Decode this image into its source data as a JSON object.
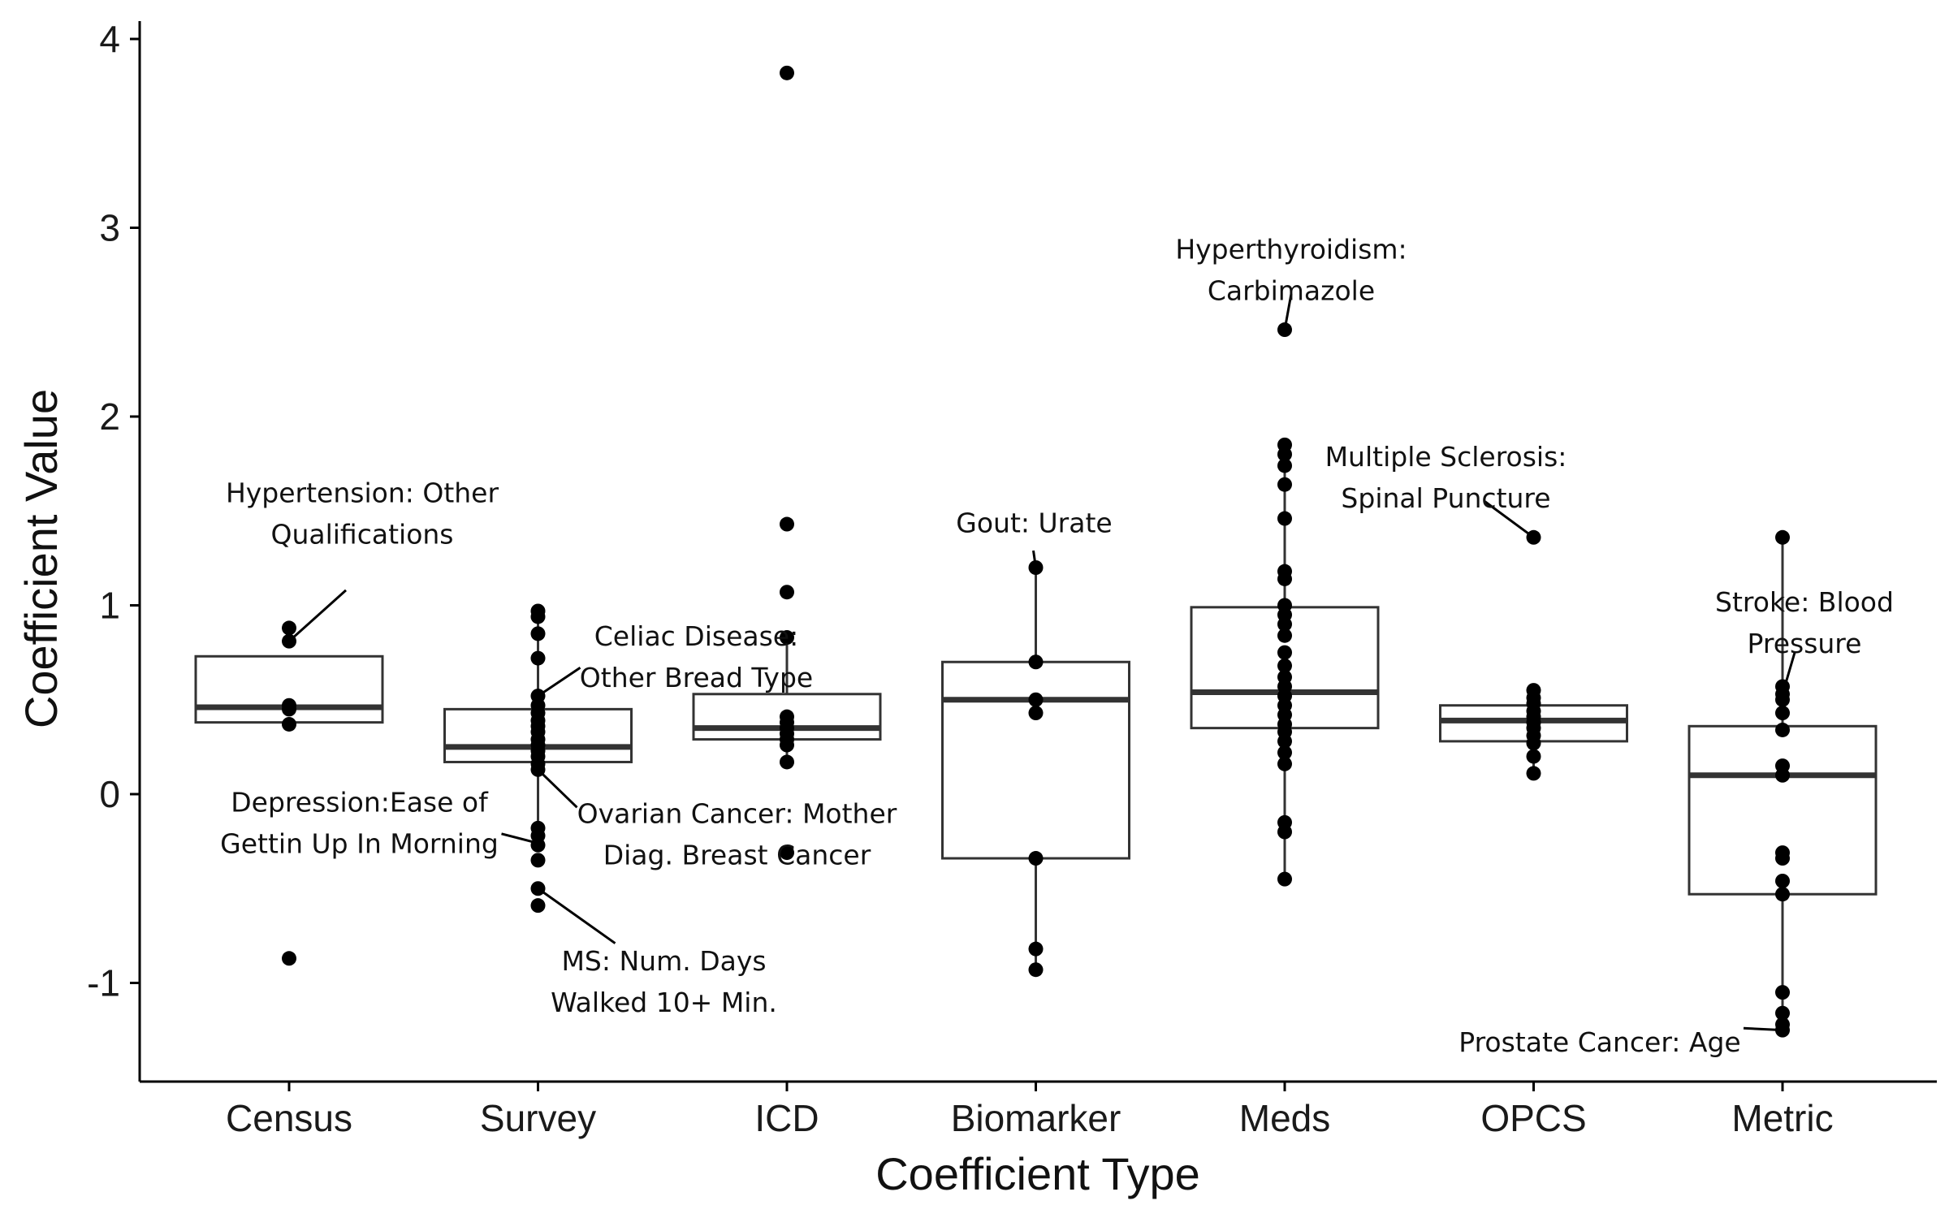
{
  "chart_data": {
    "type": "box",
    "xlabel": "Coefficient Type",
    "ylabel": "Coefficient Value",
    "ylim": [
      -1.5,
      4.1
    ],
    "yticks": [
      -1,
      0,
      1,
      2,
      3,
      4
    ],
    "ytick_labels": [
      "-1",
      "0",
      "1",
      "2",
      "3",
      "4"
    ],
    "grid": false,
    "categories": [
      "Census",
      "Survey",
      "ICD",
      "Biomarker",
      "Meds",
      "OPCS",
      "Metric"
    ],
    "boxes": [
      {
        "category": "Census",
        "q1": 0.38,
        "median": 0.46,
        "q3": 0.73,
        "whisker_low": 0.38,
        "whisker_high": 0.73,
        "points": [
          0.88,
          0.81,
          0.47,
          0.45,
          0.37,
          -0.87
        ]
      },
      {
        "category": "Survey",
        "q1": 0.17,
        "median": 0.25,
        "q3": 0.45,
        "whisker_low": -0.18,
        "whisker_high": 0.97,
        "points": [
          0.97,
          0.94,
          0.85,
          0.72,
          0.52,
          0.47,
          0.43,
          0.39,
          0.36,
          0.33,
          0.29,
          0.26,
          0.23,
          0.2,
          0.16,
          0.13,
          -0.18,
          -0.22,
          -0.27,
          -0.35,
          -0.5,
          -0.59
        ]
      },
      {
        "category": "ICD",
        "q1": 0.29,
        "median": 0.35,
        "q3": 0.53,
        "whisker_low": 0.17,
        "whisker_high": 0.83,
        "points": [
          3.82,
          1.43,
          1.07,
          0.83,
          0.41,
          0.38,
          0.35,
          0.32,
          0.29,
          0.26,
          0.17,
          -0.31
        ]
      },
      {
        "category": "Biomarker",
        "q1": -0.34,
        "median": 0.5,
        "q3": 0.7,
        "whisker_low": -0.93,
        "whisker_high": 1.2,
        "points": [
          1.2,
          0.7,
          0.5,
          0.43,
          -0.34,
          -0.82,
          -0.93
        ]
      },
      {
        "category": "Meds",
        "q1": 0.35,
        "median": 0.54,
        "q3": 0.99,
        "whisker_low": -0.45,
        "whisker_high": 1.85,
        "points": [
          2.46,
          1.85,
          1.8,
          1.74,
          1.64,
          1.46,
          1.18,
          1.14,
          1.0,
          0.95,
          0.9,
          0.84,
          0.75,
          0.68,
          0.62,
          0.57,
          0.52,
          0.47,
          0.42,
          0.37,
          0.33,
          0.28,
          0.22,
          0.16,
          -0.15,
          -0.2,
          -0.45
        ]
      },
      {
        "category": "OPCS",
        "q1": 0.28,
        "median": 0.39,
        "q3": 0.47,
        "whisker_low": 0.11,
        "whisker_high": 0.55,
        "points": [
          1.36,
          0.55,
          0.51,
          0.48,
          0.44,
          0.41,
          0.38,
          0.35,
          0.31,
          0.27,
          0.2,
          0.11
        ]
      },
      {
        "category": "Metric",
        "q1": -0.53,
        "median": 0.1,
        "q3": 0.36,
        "whisker_low": -1.25,
        "whisker_high": 1.36,
        "points": [
          1.36,
          0.57,
          0.53,
          0.5,
          0.43,
          0.34,
          0.15,
          0.1,
          -0.31,
          -0.34,
          -0.46,
          -0.53,
          -1.05,
          -1.16,
          -1.22,
          -1.25
        ]
      }
    ],
    "annotations": [
      {
        "category": "Census",
        "y": 0.81,
        "lines": [
          "Hypertension: Other",
          "Qualifications"
        ],
        "label_y": 1.65
      },
      {
        "category": "Survey",
        "y": 0.52,
        "lines": [
          "Celiac Disease:",
          "Other Bread Type"
        ],
        "label_y": 0.89
      },
      {
        "category": "Survey",
        "y": 0.13,
        "lines": [
          "Ovarian Cancer: Mother",
          "Diag. Breast Cancer"
        ],
        "label_y": -0.05
      },
      {
        "category": "Survey",
        "y": -0.26,
        "lines": [
          "Depression:Ease of",
          "Gettin Up In Morning"
        ],
        "label_y": 0.01
      },
      {
        "category": "Survey",
        "y": -0.5,
        "lines": [
          "MS: Num. Days",
          "Walked 10+ Min."
        ],
        "label_y": -0.83
      },
      {
        "category": "Biomarker",
        "y": 1.2,
        "lines": [
          "Gout: Urate"
        ],
        "label_y": 1.49
      },
      {
        "category": "Meds",
        "y": 2.46,
        "lines": [
          "Hyperthyroidism:",
          "Carbimazole"
        ],
        "label_y": 2.94
      },
      {
        "category": "OPCS",
        "y": 1.36,
        "lines": [
          "Multiple Sclerosis:",
          "Spinal Puncture"
        ],
        "label_y": 1.84
      },
      {
        "category": "Metric",
        "y": 0.53,
        "lines": [
          "Stroke: Blood",
          "Pressure"
        ],
        "label_y": 1.07
      },
      {
        "category": "Metric",
        "y": -1.25,
        "lines": [
          "Prostate Cancer: Age"
        ],
        "label_y": -1.26
      }
    ]
  }
}
